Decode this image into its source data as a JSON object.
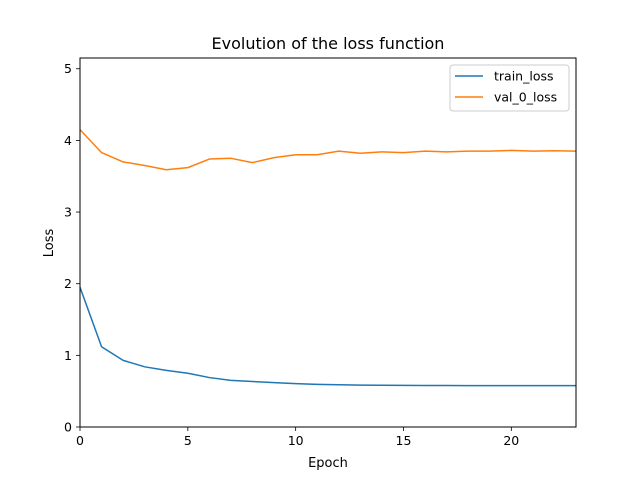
{
  "chart_data": {
    "type": "line",
    "title": "Evolution of the loss function",
    "xlabel": "Epoch",
    "ylabel": "Loss",
    "xlim": [
      0,
      23
    ],
    "ylim": [
      0,
      5.15
    ],
    "xticks": [
      0,
      5,
      10,
      15,
      20
    ],
    "yticks": [
      0,
      1,
      2,
      3,
      4,
      5
    ],
    "grid": false,
    "legend_position": "top-right",
    "x": [
      0,
      1,
      2,
      3,
      4,
      5,
      6,
      7,
      8,
      9,
      10,
      11,
      12,
      13,
      14,
      15,
      16,
      17,
      18,
      19,
      20,
      21,
      22,
      23
    ],
    "series": [
      {
        "name": "train_loss",
        "color": "#1f77b4",
        "values": [
          1.95,
          1.12,
          0.93,
          0.84,
          0.79,
          0.75,
          0.69,
          0.65,
          0.635,
          0.62,
          0.605,
          0.595,
          0.59,
          0.585,
          0.583,
          0.581,
          0.58,
          0.579,
          0.578,
          0.578,
          0.578,
          0.578,
          0.578,
          0.578
        ]
      },
      {
        "name": "val_0_loss",
        "color": "#ff7f0e",
        "values": [
          4.15,
          3.83,
          3.7,
          3.65,
          3.59,
          3.62,
          3.74,
          3.75,
          3.69,
          3.76,
          3.8,
          3.8,
          3.85,
          3.82,
          3.84,
          3.83,
          3.85,
          3.84,
          3.85,
          3.85,
          3.86,
          3.85,
          3.855,
          3.85
        ]
      }
    ]
  }
}
